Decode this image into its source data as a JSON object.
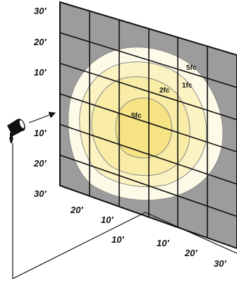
{
  "vertical_scale": {
    "upper": [
      "30′",
      "20′",
      "10′"
    ],
    "lower": [
      "10′",
      "20′",
      "30′"
    ]
  },
  "floor_scale": {
    "left": [
      "20′",
      "10′"
    ],
    "center": "10′",
    "right": [
      "10′",
      "20′",
      "30′"
    ]
  },
  "contours": [
    {
      "label": "5fc",
      "color": "#fdfbe8"
    },
    {
      "label": "1fc",
      "color": "#fbf3c2"
    },
    {
      "label": "2fc",
      "color": "#f8eca6"
    },
    {
      "label": "5fc",
      "color": "#f5e384"
    }
  ],
  "colors": {
    "wall": "#9c9c9c",
    "grid": "#111111",
    "fixture": "#111111"
  },
  "icons": {
    "fixture": "spotlight-icon"
  }
}
